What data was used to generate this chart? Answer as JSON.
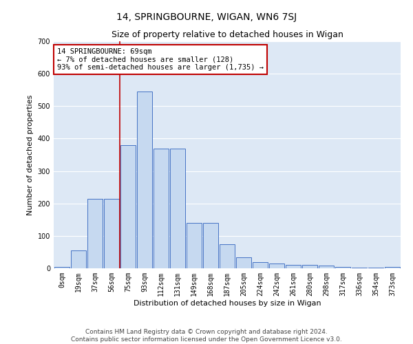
{
  "title": "14, SPRINGBOURNE, WIGAN, WN6 7SJ",
  "subtitle": "Size of property relative to detached houses in Wigan",
  "xlabel": "Distribution of detached houses by size in Wigan",
  "ylabel": "Number of detached properties",
  "bar_labels": [
    "0sqm",
    "19sqm",
    "37sqm",
    "56sqm",
    "75sqm",
    "93sqm",
    "112sqm",
    "131sqm",
    "149sqm",
    "168sqm",
    "187sqm",
    "205sqm",
    "224sqm",
    "242sqm",
    "261sqm",
    "280sqm",
    "298sqm",
    "317sqm",
    "336sqm",
    "354sqm",
    "373sqm"
  ],
  "bar_values": [
    5,
    55,
    215,
    215,
    380,
    545,
    370,
    370,
    140,
    140,
    75,
    35,
    20,
    15,
    10,
    10,
    8,
    5,
    3,
    3,
    5
  ],
  "bar_color": "#c6d9f0",
  "bar_edge_color": "#4472c4",
  "vline_x": 3.5,
  "vline_color": "#c00000",
  "annotation_text": "14 SPRINGBOURNE: 69sqm\n← 7% of detached houses are smaller (128)\n93% of semi-detached houses are larger (1,735) →",
  "annotation_box_color": "#ffffff",
  "annotation_box_edge": "#c00000",
  "ylim": [
    0,
    700
  ],
  "yticks": [
    0,
    100,
    200,
    300,
    400,
    500,
    600,
    700
  ],
  "footer1": "Contains HM Land Registry data © Crown copyright and database right 2024.",
  "footer2": "Contains public sector information licensed under the Open Government Licence v3.0.",
  "bg_color": "#ffffff",
  "plot_bg_color": "#dde8f5",
  "grid_color": "#ffffff",
  "title_fontsize": 10,
  "subtitle_fontsize": 9,
  "axis_label_fontsize": 8,
  "tick_fontsize": 7,
  "annotation_fontsize": 7.5,
  "footer_fontsize": 6.5
}
